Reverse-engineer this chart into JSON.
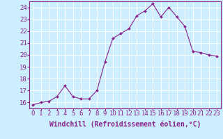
{
  "x": [
    0,
    1,
    2,
    3,
    4,
    5,
    6,
    7,
    8,
    9,
    10,
    11,
    12,
    13,
    14,
    15,
    16,
    17,
    18,
    19,
    20,
    21,
    22,
    23
  ],
  "y": [
    15.8,
    16.0,
    16.1,
    16.5,
    17.4,
    16.5,
    16.3,
    16.3,
    17.0,
    19.4,
    21.4,
    21.8,
    22.2,
    23.3,
    23.7,
    24.3,
    23.2,
    24.0,
    23.2,
    22.4,
    20.3,
    20.2,
    20.0,
    19.9
  ],
  "ylim": [
    15.5,
    24.5
  ],
  "yticks": [
    16,
    17,
    18,
    19,
    20,
    21,
    22,
    23,
    24
  ],
  "xtick_labels": [
    "0",
    "1",
    "2",
    "3",
    "4",
    "5",
    "6",
    "7",
    "8",
    "9",
    "10",
    "11",
    "12",
    "13",
    "14",
    "15",
    "16",
    "17",
    "18",
    "19",
    "20",
    "21",
    "22",
    "23"
  ],
  "xlabel": "Windchill (Refroidissement éolien,°C)",
  "line_color": "#882288",
  "marker_color": "#882288",
  "bg_color": "#cceeff",
  "grid_color": "#ffffff",
  "xlabel_color": "#882288",
  "tick_color": "#882288",
  "xlabel_fontsize": 7.0,
  "tick_fontsize": 6.5,
  "fig_width": 3.2,
  "fig_height": 2.0
}
